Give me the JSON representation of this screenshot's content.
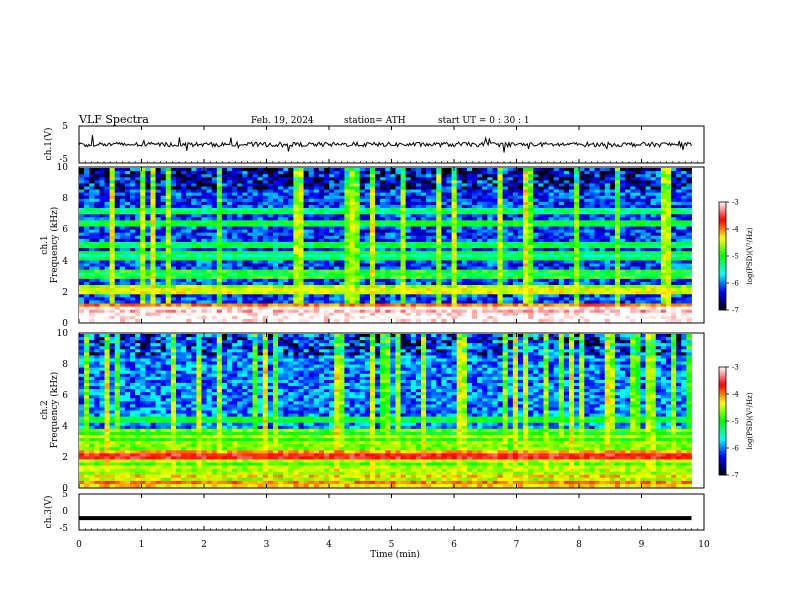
{
  "header": {
    "title": "VLF  Spectra",
    "date": "Feb. 19, 2024",
    "station": "station= ATH",
    "start_ut": "start  UT  =    0  : 30 : 1"
  },
  "chart_data": [
    {
      "type": "line",
      "panel": "ch1-waveform",
      "ylabel": "ch.1(V)",
      "ylim": [
        -5,
        5
      ],
      "yticks": [
        "5",
        "-5"
      ],
      "x_range_min": [
        0,
        9.8
      ],
      "approx_level_volts": 0,
      "colors": {
        "trace": "#000000"
      }
    },
    {
      "type": "heatmap",
      "panel": "ch1-spectrogram",
      "ylabel": "ch.1\nFrequency  (kHz)",
      "ylim": [
        0,
        10
      ],
      "yticks": [
        "10",
        "8",
        "6",
        "4",
        "2",
        "0"
      ],
      "x_range_min": [
        0,
        9.8
      ],
      "colorbar": {
        "label": "log(PSD)(V²/Hz)",
        "ticks": [
          "-3",
          "-4",
          "-5",
          "-6",
          "-7"
        ],
        "range": [
          -7,
          -3
        ]
      },
      "features": {
        "bands_khz": [
          {
            "f": 0.2,
            "level": -3.2
          },
          {
            "f": 0.5,
            "level": -3.6
          },
          {
            "f": 0.7,
            "level": -3.4
          },
          {
            "f": 1.0,
            "level": -4.2
          },
          {
            "f": 2.0,
            "level": -4.6
          },
          {
            "f": 2.2,
            "level": -4.8
          },
          {
            "f": 3.1,
            "level": -5.3
          },
          {
            "f": 4.3,
            "level": -5.5
          },
          {
            "f": 5.0,
            "level": -5.4
          },
          {
            "f": 6.4,
            "level": -5.3
          },
          {
            "f": 7.2,
            "level": -5.5
          }
        ],
        "background_level": -6.2
      }
    },
    {
      "type": "heatmap",
      "panel": "ch2-spectrogram",
      "ylabel": "ch.2\nFrequency  (kHz)",
      "ylim": [
        0,
        10
      ],
      "yticks": [
        "10",
        "8",
        "6",
        "4",
        "2",
        "0"
      ],
      "x_range_min": [
        0,
        9.8
      ],
      "colorbar": {
        "label": "log(PSD)(V²/Hz)",
        "ticks": [
          "-3",
          "-4",
          "-5",
          "-6",
          "-7"
        ],
        "range": [
          -7,
          -3
        ]
      },
      "features": {
        "bands_khz": [
          {
            "f": 0.15,
            "level": -4.3
          },
          {
            "f": 0.5,
            "level": -4.6
          },
          {
            "f": 1.0,
            "level": -4.8
          },
          {
            "f": 1.5,
            "level": -4.9
          },
          {
            "f": 2.0,
            "level": -3.8
          },
          {
            "f": 2.2,
            "level": -4.3
          },
          {
            "f": 2.6,
            "level": -4.9
          },
          {
            "f": 3.1,
            "level": -5.0
          },
          {
            "f": 3.5,
            "level": -5.1
          },
          {
            "f": 4.4,
            "level": -5.3
          }
        ],
        "background_level": -6.0
      }
    },
    {
      "type": "line",
      "panel": "ch3-waveform",
      "ylabel": "ch.3(V)",
      "ylim": [
        -5,
        5
      ],
      "yticks": [
        "5",
        "0",
        "-5"
      ],
      "x_range_min": [
        0,
        9.8
      ],
      "approx_level_volts": -1.7,
      "colors": {
        "trace": "#000000"
      }
    }
  ],
  "xaxis": {
    "label": "Time  (min)",
    "ticks": [
      "0",
      "1",
      "2",
      "3",
      "4",
      "5",
      "6",
      "7",
      "8",
      "9",
      "10"
    ],
    "range": [
      0,
      10
    ]
  },
  "colormap": [
    "#ffffff",
    "#ff0000",
    "#ffff00",
    "#00ff00",
    "#00ffff",
    "#0000ff",
    "#000000"
  ]
}
